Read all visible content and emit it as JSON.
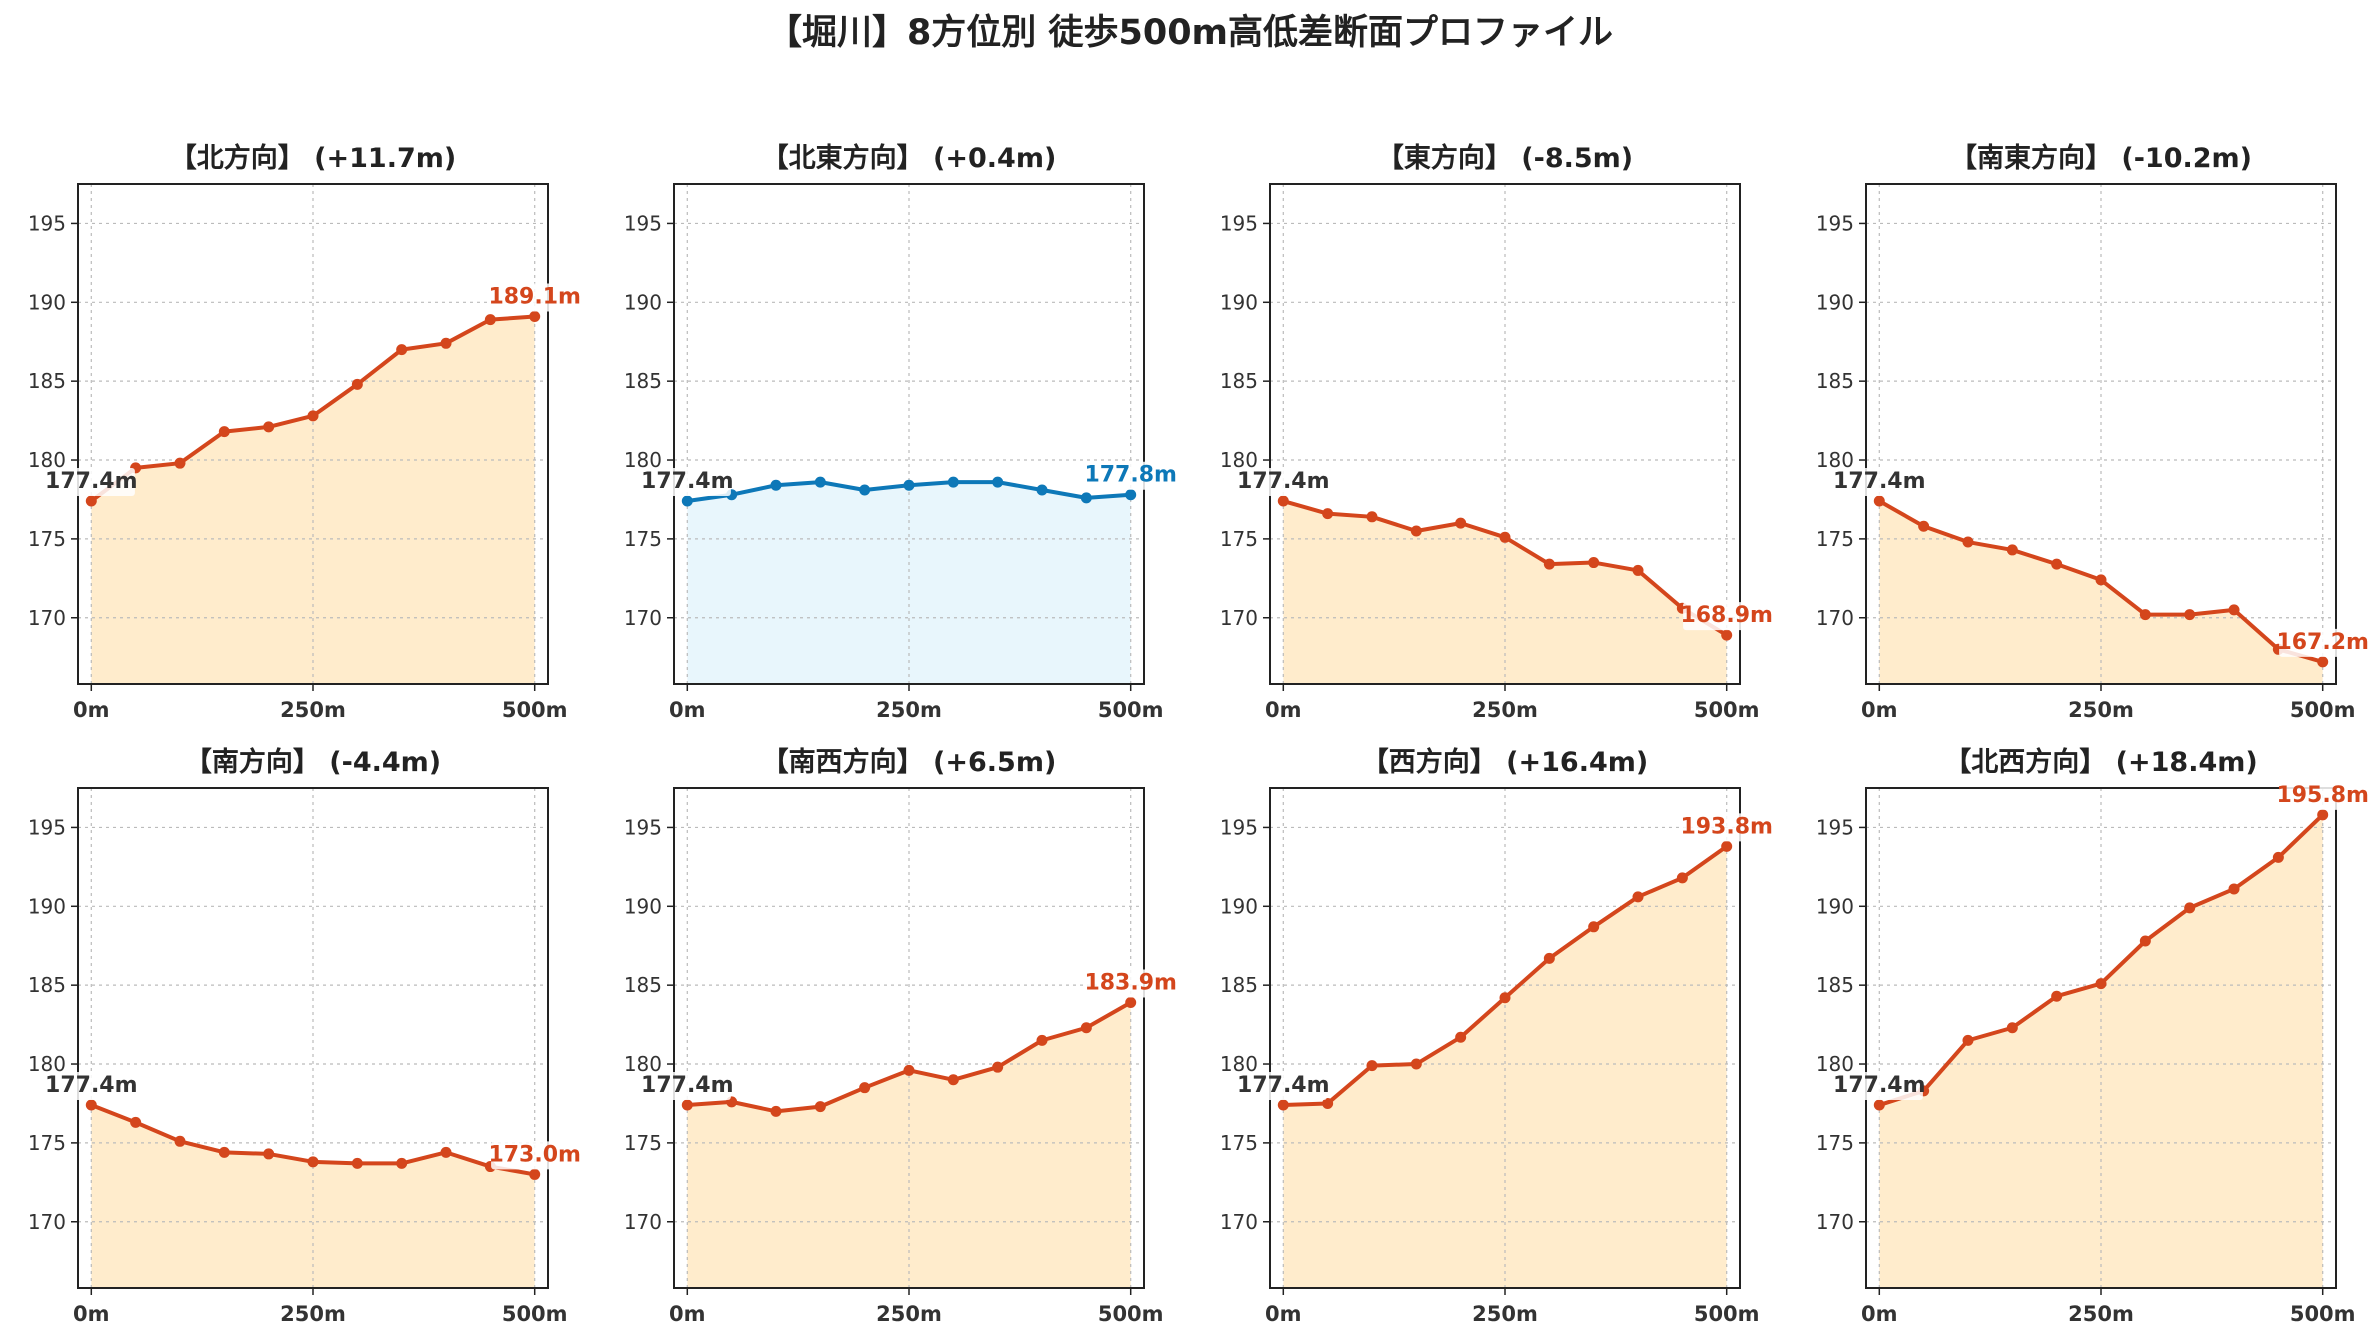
{
  "chart_data": {
    "type": "line",
    "title": "【堀川】8方位別 徒歩500m高低差断面プロファイル",
    "x": [
      0,
      50,
      100,
      150,
      200,
      250,
      300,
      350,
      400,
      450,
      500
    ],
    "xticks": [
      0,
      250,
      500
    ],
    "xtick_labels": [
      "0m",
      "250m",
      "500m"
    ],
    "xlim": [
      -15,
      515
    ],
    "ylim": [
      165.8,
      197.5
    ],
    "yticks": [
      170,
      175,
      180,
      185,
      190,
      195
    ],
    "grid": true,
    "colors": {
      "up_line": "#d4461c",
      "up_fill": "#ffeccc",
      "flat_line": "#0d78b8",
      "flat_fill": "#e8f6fc",
      "start_label": "#333333"
    },
    "panels": [
      {
        "title": "【北方向】 (+11.7m)",
        "style": "up",
        "start_label": "177.4m",
        "end_label": "189.1m",
        "values": [
          177.4,
          179.5,
          179.8,
          181.8,
          182.1,
          182.8,
          184.8,
          187.0,
          187.4,
          188.9,
          189.1
        ]
      },
      {
        "title": "【北東方向】 (+0.4m)",
        "style": "flat",
        "start_label": "177.4m",
        "end_label": "177.8m",
        "values": [
          177.4,
          177.8,
          178.4,
          178.6,
          178.1,
          178.4,
          178.6,
          178.6,
          178.1,
          177.6,
          177.8
        ]
      },
      {
        "title": "【東方向】 (-8.5m)",
        "style": "up",
        "start_label": "177.4m",
        "end_label": "168.9m",
        "values": [
          177.4,
          176.6,
          176.4,
          175.5,
          176.0,
          175.1,
          173.4,
          173.5,
          173.0,
          170.6,
          168.9
        ]
      },
      {
        "title": "【南東方向】 (-10.2m)",
        "style": "up",
        "start_label": "177.4m",
        "end_label": "167.2m",
        "values": [
          177.4,
          175.8,
          174.8,
          174.3,
          173.4,
          172.4,
          170.2,
          170.2,
          170.5,
          168.0,
          167.2
        ]
      },
      {
        "title": "【南方向】 (-4.4m)",
        "style": "up",
        "start_label": "177.4m",
        "end_label": "173.0m",
        "values": [
          177.4,
          176.3,
          175.1,
          174.4,
          174.3,
          173.8,
          173.7,
          173.7,
          174.4,
          173.5,
          173.0
        ]
      },
      {
        "title": "【南西方向】 (+6.5m)",
        "style": "up",
        "start_label": "177.4m",
        "end_label": "183.9m",
        "values": [
          177.4,
          177.6,
          177.0,
          177.3,
          178.5,
          179.6,
          179.0,
          179.8,
          181.5,
          182.3,
          183.9
        ]
      },
      {
        "title": "【西方向】 (+16.4m)",
        "style": "up",
        "start_label": "177.4m",
        "end_label": "193.8m",
        "values": [
          177.4,
          177.5,
          179.9,
          180.0,
          181.7,
          184.2,
          186.7,
          188.7,
          190.6,
          191.8,
          193.8
        ]
      },
      {
        "title": "【北西方向】 (+18.4m)",
        "style": "up",
        "start_label": "177.4m",
        "end_label": "195.8m",
        "values": [
          177.4,
          178.3,
          181.5,
          182.3,
          184.3,
          185.1,
          187.8,
          189.9,
          191.1,
          193.1,
          195.8
        ]
      }
    ]
  }
}
